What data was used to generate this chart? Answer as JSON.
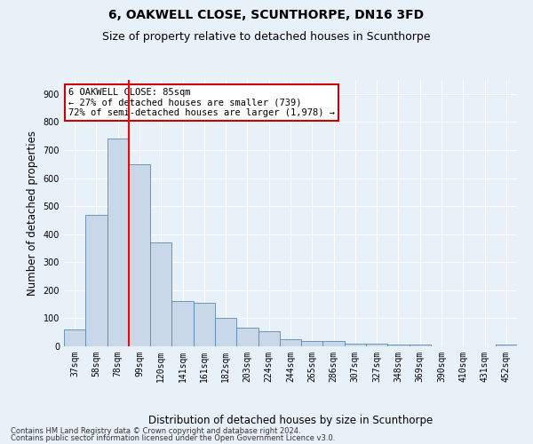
{
  "title": "6, OAKWELL CLOSE, SCUNTHORPE, DN16 3FD",
  "subtitle": "Size of property relative to detached houses in Scunthorpe",
  "xlabel": "Distribution of detached houses by size in Scunthorpe",
  "ylabel": "Number of detached properties",
  "categories": [
    "37sqm",
    "58sqm",
    "78sqm",
    "99sqm",
    "120sqm",
    "141sqm",
    "161sqm",
    "182sqm",
    "203sqm",
    "224sqm",
    "244sqm",
    "265sqm",
    "286sqm",
    "307sqm",
    "327sqm",
    "348sqm",
    "369sqm",
    "390sqm",
    "410sqm",
    "431sqm",
    "452sqm"
  ],
  "values": [
    60,
    470,
    740,
    650,
    370,
    160,
    155,
    100,
    65,
    55,
    25,
    20,
    20,
    10,
    8,
    5,
    5,
    0,
    0,
    0,
    5
  ],
  "bar_color": "#c8d8e8",
  "bar_edge_color": "#5a8ab0",
  "red_line_x": 2.5,
  "annotation_text": "6 OAKWELL CLOSE: 85sqm\n← 27% of detached houses are smaller (739)\n72% of semi-detached houses are larger (1,978) →",
  "annotation_box_color": "#ffffff",
  "annotation_box_edge": "#cc0000",
  "footnote1": "Contains HM Land Registry data © Crown copyright and database right 2024.",
  "footnote2": "Contains public sector information licensed under the Open Government Licence v3.0.",
  "ylim": [
    0,
    950
  ],
  "yticks": [
    0,
    100,
    200,
    300,
    400,
    500,
    600,
    700,
    800,
    900
  ],
  "bg_color": "#e8f0f8",
  "plot_bg_color": "#e8f0f8",
  "grid_color": "#ffffff",
  "title_fontsize": 10,
  "subtitle_fontsize": 9,
  "tick_fontsize": 7,
  "label_fontsize": 8.5
}
